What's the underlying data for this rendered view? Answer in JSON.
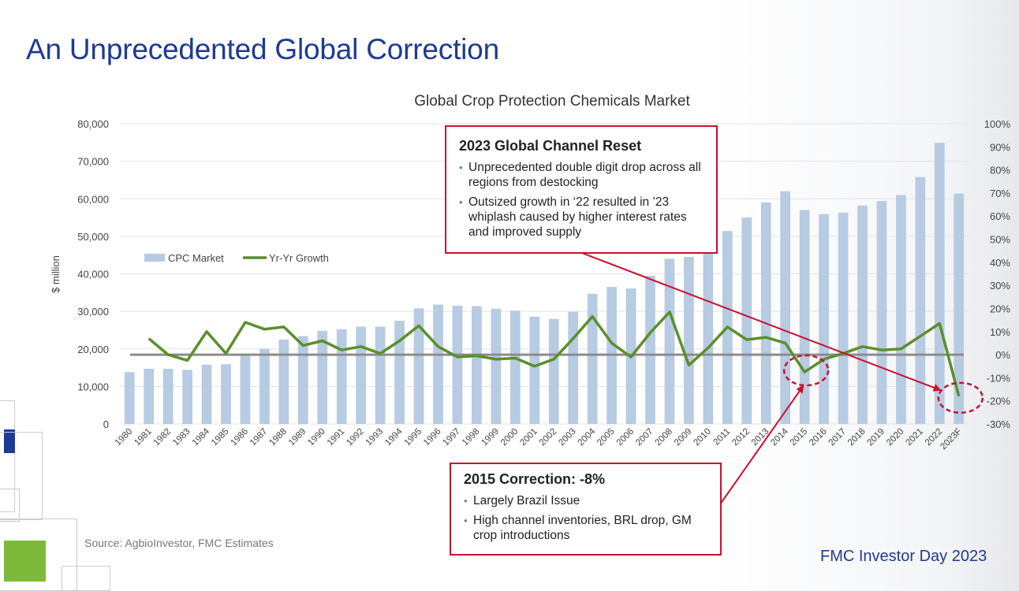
{
  "title": "An Unprecedented Global Correction",
  "chart_data": {
    "type": "bar",
    "title": "Global Crop Protection Chemicals Market",
    "ylabel": "$ million",
    "ylim": [
      0,
      80000
    ],
    "y_ticks": [
      "0",
      "10,000",
      "20,000",
      "30,000",
      "40,000",
      "50,000",
      "60,000",
      "70,000",
      "80,000"
    ],
    "y2lim": [
      -30,
      100
    ],
    "y2_ticks": [
      "-30%",
      "-20%",
      "-10%",
      "0%",
      "10%",
      "20%",
      "30%",
      "40%",
      "50%",
      "60%",
      "70%",
      "80%",
      "90%",
      "100%"
    ],
    "categories": [
      "1980",
      "1981",
      "1982",
      "1983",
      "1984",
      "1985",
      "1986",
      "1987",
      "1988",
      "1989",
      "1990",
      "1991",
      "1992",
      "1993",
      "1994",
      "1995",
      "1996",
      "1997",
      "1998",
      "1999",
      "2000",
      "2001",
      "2002",
      "2003",
      "2004",
      "2005",
      "2006",
      "2007",
      "2008",
      "2009",
      "2010",
      "2011",
      "2012",
      "2013",
      "2014",
      "2015",
      "2016",
      "2017",
      "2018",
      "2019",
      "2020",
      "2021",
      "2022",
      "2023F"
    ],
    "series": [
      {
        "name": "CPC Market",
        "type": "bar",
        "axis": "left",
        "color": "#b7cbe3",
        "values": [
          13800,
          14700,
          14700,
          14400,
          15800,
          15900,
          18600,
          20000,
          22500,
          23400,
          24800,
          25200,
          25900,
          25900,
          27500,
          30800,
          31800,
          31500,
          31400,
          30700,
          30200,
          28600,
          28000,
          29900,
          34700,
          36500,
          36100,
          39500,
          44000,
          44500,
          46000,
          51400,
          55000,
          59000,
          62000,
          57000,
          55900,
          56300,
          58200,
          59400,
          61000,
          65800,
          74900,
          61400
        ]
      },
      {
        "name": "Yr-Yr Growth",
        "type": "line",
        "axis": "right",
        "unit": "%",
        "color": "#5b8f2b",
        "values": [
          null,
          7,
          0,
          -2.5,
          10,
          0.5,
          14,
          11,
          12,
          4,
          6,
          2,
          3.5,
          0.5,
          6,
          12.5,
          3.5,
          -1,
          -0.5,
          -2,
          -1.5,
          -5,
          -2,
          7,
          16.5,
          5,
          -1,
          9.5,
          18.5,
          -4.5,
          3,
          12,
          6.5,
          7.5,
          5,
          -7.5,
          -2,
          0.5,
          3.5,
          2,
          2.5,
          8,
          13.5,
          -18
        ]
      }
    ],
    "reference_line": {
      "axis": "right",
      "value": 0,
      "color": "#8c8c8c"
    },
    "legend": {
      "position": "upper-left",
      "entries": [
        "CPC Market",
        "Yr-Yr Growth"
      ]
    },
    "annotations": [
      {
        "target": "2015",
        "shape": "dashed-ellipse",
        "color": "#c8102e"
      },
      {
        "target": "2023F",
        "shape": "dashed-ellipse",
        "color": "#c8102e"
      }
    ]
  },
  "callouts": {
    "reset": {
      "title": "2023 Global Channel Reset",
      "bullets": [
        "Unprecedented double digit drop across all regions from destocking",
        "Outsized growth in ‘22 resulted in ’23 whiplash caused by higher interest rates and improved supply"
      ]
    },
    "correction": {
      "title": "2015 Correction:  -8%",
      "bullets": [
        "Largely Brazil Issue",
        "High channel inventories, BRL drop, GM crop introductions"
      ]
    }
  },
  "source": "Source: AgbioInvestor, FMC Estimates",
  "brand": "FMC Investor Day 2023",
  "colors": {
    "title": "#1f3a93",
    "callout_border": "#c8102e",
    "accent_green": "#7dba3b",
    "accent_navy": "#1f3a93"
  }
}
